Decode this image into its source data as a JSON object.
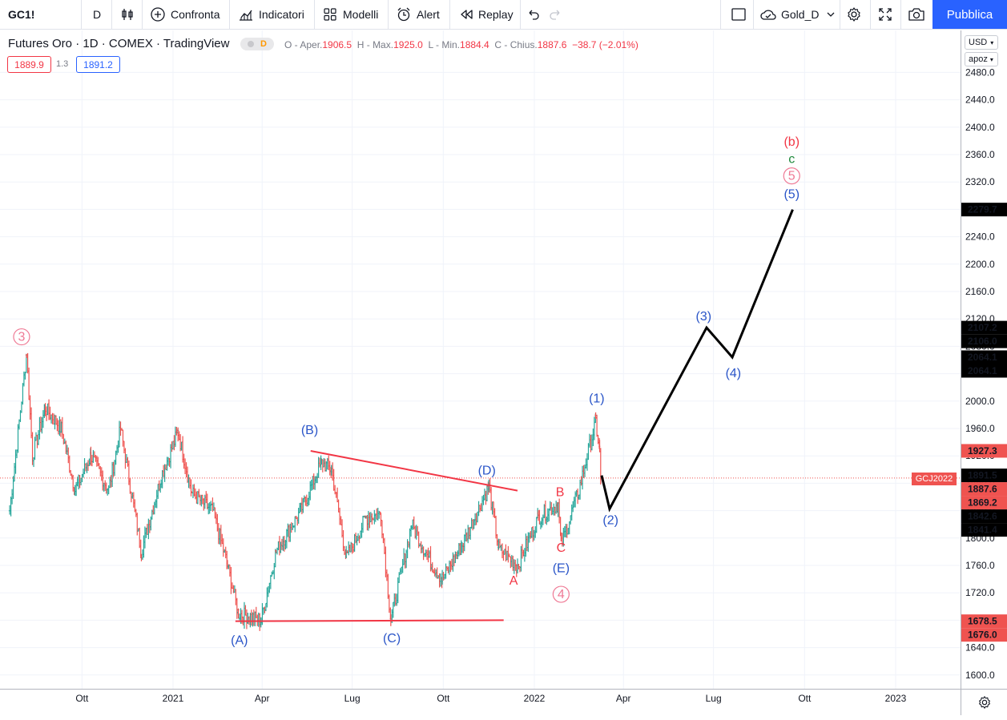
{
  "toolbar": {
    "symbol": "GC1!",
    "interval": "D",
    "compare_label": "Confronta",
    "indicators_label": "Indicatori",
    "templates_label": "Modelli",
    "alert_label": "Alert",
    "replay_label": "Replay",
    "layout_name": "Gold_D",
    "publish_label": "Pubblica"
  },
  "legend": {
    "title": "Futures Oro · 1D · COMEX · TradingView",
    "badge": "D",
    "open_label": "O - Aper.",
    "open": "1906.5",
    "high_label": "H - Max.",
    "high": "1925.0",
    "low_label": "L - Min.",
    "low": "1884.4",
    "close_label": "C - Chius.",
    "close": "1887.6",
    "change": "−38.7 (−2.01%)",
    "bid": "1889.9",
    "spread": "1.3",
    "ask": "1891.2"
  },
  "axis": {
    "currency": "USD",
    "scale_mode": "apoz",
    "y_ticks": [
      "2480.0",
      "2440.0",
      "2400.0",
      "2360.0",
      "2320.0",
      "2280.0",
      "2240.0",
      "2200.0",
      "2160.0",
      "2120.0",
      "2080.0",
      "2040.0",
      "2000.0",
      "1960.0",
      "1920.0",
      "1880.0",
      "1840.0",
      "1800.0",
      "1760.0",
      "1720.0",
      "1680.0",
      "1640.0",
      "1600.0"
    ],
    "x_ticks": [
      "Ott",
      "2021",
      "Apr",
      "Lug",
      "Ott",
      "2022",
      "Apr",
      "Lug",
      "Ott",
      "2023"
    ],
    "price_tags": [
      {
        "text": "2279.7",
        "bg": "#000000",
        "fg": "#ffffff",
        "price": 2279.7
      },
      {
        "text": "2107.2",
        "bg": "#000000",
        "fg": "#ffffff",
        "price": 2107.2
      },
      {
        "text": "2106.0",
        "bg": "#000000",
        "fg": "#ffffff",
        "price": 2106.0
      },
      {
        "text": "2064.1",
        "bg": "#000000",
        "fg": "#ffffff",
        "price": 2064.1
      },
      {
        "text": "2064.1",
        "bg": "#000000",
        "fg": "#ffffff",
        "price": 2064.1
      },
      {
        "text": "1927.3",
        "bg": "#ef5350",
        "fg": "#ffffff",
        "price": 1927.3
      },
      {
        "text": "1891.5",
        "bg": "#000000",
        "fg": "#ffffff",
        "price": 1891.5
      },
      {
        "text": "1887.6",
        "bg": "#ef5350",
        "fg": "#ffffff",
        "price": 1887.6
      },
      {
        "text": "1869.2",
        "bg": "#ef5350",
        "fg": "#ffffff",
        "price": 1869.2
      },
      {
        "text": "1842.6",
        "bg": "#000000",
        "fg": "#ffffff",
        "price": 1842.6
      },
      {
        "text": "1841.4",
        "bg": "#000000",
        "fg": "#ffffff",
        "price": 1841.4
      },
      {
        "text": "1678.5",
        "bg": "#ef5350",
        "fg": "#ffffff",
        "price": 1678.5
      },
      {
        "text": "1676.0",
        "bg": "#ef5350",
        "fg": "#ffffff",
        "price": 1676.0
      }
    ],
    "contract_label": "GCJ2022"
  },
  "chart_data": {
    "type": "line",
    "symbol": "GC1!",
    "last_price": 1887.6,
    "ylim": [
      1585,
      2510
    ],
    "y_scale": "linear",
    "grid": true,
    "price_path": [
      [
        "2020-07-20",
        1840
      ],
      [
        "2020-08-06",
        2070
      ],
      [
        "2020-08-12",
        1920
      ],
      [
        "2020-08-25",
        1990
      ],
      [
        "2020-09-10",
        1960
      ],
      [
        "2020-09-24",
        1870
      ],
      [
        "2020-10-10",
        1920
      ],
      [
        "2020-10-28",
        1870
      ],
      [
        "2020-11-09",
        1960
      ],
      [
        "2020-11-30",
        1780
      ],
      [
        "2020-12-20",
        1890
      ],
      [
        "2021-01-06",
        1955
      ],
      [
        "2021-01-20",
        1865
      ],
      [
        "2021-02-10",
        1840
      ],
      [
        "2021-02-25",
        1760
      ],
      [
        "2021-03-08",
        1690
      ],
      [
        "2021-03-31",
        1680
      ],
      [
        "2021-04-15",
        1780
      ],
      [
        "2021-05-10",
        1840
      ],
      [
        "2021-05-31",
        1910
      ],
      [
        "2021-06-10",
        1900
      ],
      [
        "2021-06-25",
        1770
      ],
      [
        "2021-07-15",
        1830
      ],
      [
        "2021-07-30",
        1835
      ],
      [
        "2021-08-09",
        1680
      ],
      [
        "2021-08-30",
        1820
      ],
      [
        "2021-09-20",
        1760
      ],
      [
        "2021-09-30",
        1740
      ],
      [
        "2021-10-20",
        1790
      ],
      [
        "2021-11-16",
        1875
      ],
      [
        "2021-11-26",
        1785
      ],
      [
        "2021-12-15",
        1760
      ],
      [
        "2022-01-05",
        1830
      ],
      [
        "2022-01-25",
        1850
      ],
      [
        "2022-01-28",
        1790
      ],
      [
        "2022-02-15",
        1870
      ],
      [
        "2022-03-04",
        1970
      ],
      [
        "2022-03-08",
        1925
      ],
      [
        "2022-03-09",
        1887.6
      ]
    ],
    "triangle_lines": [
      {
        "from": [
          "2021-03-05",
          1678.5
        ],
        "to": [
          "2021-12-01",
          1680
        ],
        "color": "#f23645"
      },
      {
        "from": [
          "2021-05-20",
          1927.3
        ],
        "to": [
          "2021-12-15",
          1869.2
        ],
        "color": "#f23645"
      }
    ],
    "projection": [
      [
        "2022-03-10",
        1891.5
      ],
      [
        "2022-03-18",
        1842.6
      ],
      [
        "2022-06-24",
        2107.2
      ],
      [
        "2022-07-20",
        2064.1
      ],
      [
        "2022-09-19",
        2279.7
      ]
    ],
    "wave_labels": [
      {
        "text": "3",
        "circled": true,
        "date": "2020-08-01",
        "price": 2088,
        "color": "#ef7a95"
      },
      {
        "text": "(A)",
        "date": "2021-03-09",
        "price": 1645,
        "color": "#2a55c8"
      },
      {
        "text": "(B)",
        "date": "2021-05-19",
        "price": 1952,
        "color": "#2a55c8"
      },
      {
        "text": "(C)",
        "date": "2021-08-10",
        "price": 1648,
        "color": "#2a55c8"
      },
      {
        "text": "(D)",
        "date": "2021-11-14",
        "price": 1893,
        "color": "#2a55c8"
      },
      {
        "text": "A",
        "date": "2021-12-11",
        "price": 1732,
        "color": "#f23645"
      },
      {
        "text": "B",
        "date": "2022-01-27",
        "price": 1861,
        "color": "#f23645"
      },
      {
        "text": "C",
        "date": "2022-01-28",
        "price": 1780,
        "color": "#f23645"
      },
      {
        "text": "(E)",
        "date": "2022-01-28",
        "price": 1750,
        "color": "#2a55c8"
      },
      {
        "text": "4",
        "circled": true,
        "date": "2022-01-28",
        "price": 1712,
        "color": "#ef7a95"
      },
      {
        "text": "(1)",
        "date": "2022-03-05",
        "price": 1998,
        "color": "#2a55c8"
      },
      {
        "text": "(2)",
        "date": "2022-03-19",
        "price": 1820,
        "color": "#2a55c8"
      },
      {
        "text": "(3)",
        "date": "2022-06-21",
        "price": 2118,
        "color": "#2a55c8"
      },
      {
        "text": "(4)",
        "date": "2022-07-21",
        "price": 2035,
        "color": "#2a55c8"
      },
      {
        "text": "(5)",
        "date": "2022-09-18",
        "price": 2296,
        "color": "#2a55c8"
      },
      {
        "text": "5",
        "circled": true,
        "date": "2022-09-18",
        "price": 2323,
        "color": "#ef7a95"
      },
      {
        "text": "c",
        "date": "2022-09-18",
        "price": 2348,
        "color": "#1f8a3c"
      },
      {
        "text": "(b)",
        "date": "2022-09-18",
        "price": 2373,
        "color": "#f23645"
      }
    ]
  }
}
